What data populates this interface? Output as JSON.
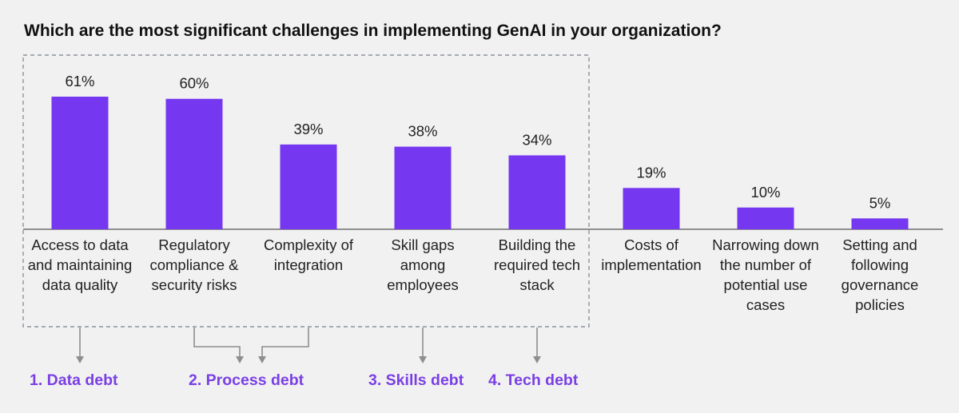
{
  "chart_data": {
    "type": "bar",
    "title": "Which are the most significant challenges in implementing GenAI in your organization?",
    "categories": [
      "Access to data and maintaining data quality",
      "Regulatory compliance & security risks",
      "Complexity of integration",
      "Skill gaps among employees",
      "Building the required tech stack",
      "Costs of implementation",
      "Narrowing down the number of potential use cases",
      "Setting and following governance policies"
    ],
    "values": [
      61,
      60,
      39,
      38,
      34,
      19,
      10,
      5
    ],
    "value_labels": [
      "61%",
      "60%",
      "39%",
      "38%",
      "34%",
      "19%",
      "10%",
      "5%"
    ],
    "ylim": [
      0,
      61
    ],
    "grid": false,
    "legend": "none"
  },
  "groups": [
    {
      "label": "1. Data debt",
      "categories": [
        0
      ]
    },
    {
      "label": "2. Process debt",
      "categories": [
        1,
        2
      ]
    },
    {
      "label": "3. Skills debt",
      "categories": [
        3
      ]
    },
    {
      "label": "4. Tech debt",
      "categories": [
        4
      ]
    }
  ],
  "colors": {
    "bar": "#7538f0",
    "accent_text": "#7a3fe4",
    "axis": "#555555",
    "box": "#8a939c",
    "arrow": "#8e8e8e"
  }
}
